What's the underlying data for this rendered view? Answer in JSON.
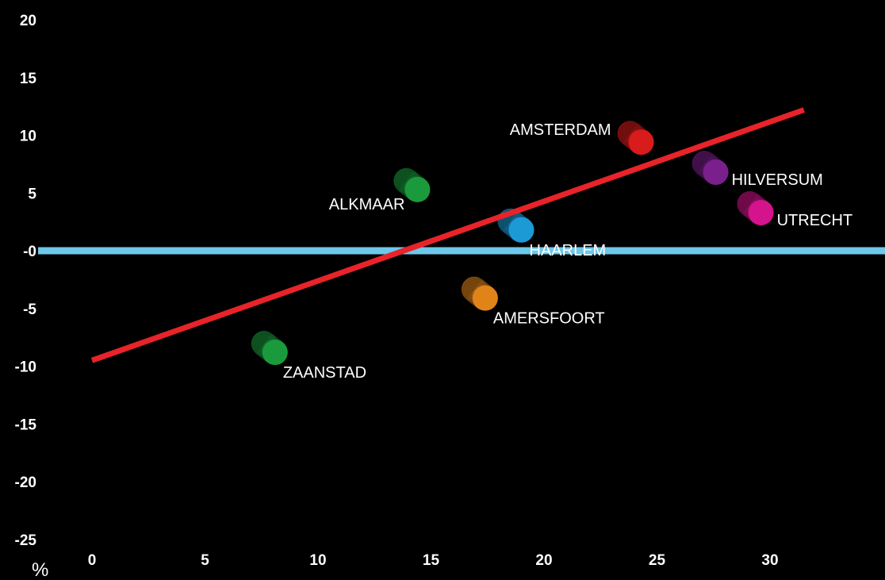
{
  "chart_data": {
    "type": "scatter",
    "title": "",
    "xlabel": "",
    "ylabel": "",
    "unit_label": "%",
    "xlim": [
      0,
      35
    ],
    "ylim": [
      -25,
      20
    ],
    "x_ticks": [
      0,
      5,
      10,
      15,
      20,
      25,
      30
    ],
    "x_tick_labels": [
      "0",
      "5",
      "10",
      "15",
      "20",
      "25",
      "30"
    ],
    "y_ticks": [
      20,
      15,
      10,
      5,
      0,
      -5,
      -10,
      -15,
      -20,
      -25
    ],
    "y_tick_labels": [
      "20",
      "15",
      "10",
      "5",
      "-0",
      "-5",
      "-10",
      "-15",
      "-20",
      "-25"
    ],
    "grid": false,
    "background": "#000000",
    "zero_line_color": "#6dc8ec",
    "trend_line": {
      "color": "#e8232a",
      "x": [
        0,
        31.5
      ],
      "y": [
        -9.5,
        12.2
      ]
    },
    "points": [
      {
        "name": "AMSTERDAM",
        "x": 24.3,
        "y": 9.4,
        "color": "#d81b1b",
        "label_side": "left-above"
      },
      {
        "name": "HILVERSUM",
        "x": 27.6,
        "y": 6.8,
        "color": "#7b1f8c",
        "label_side": "right"
      },
      {
        "name": "UTRECHT",
        "x": 29.6,
        "y": 3.3,
        "color": "#d4138c",
        "label_side": "right"
      },
      {
        "name": "ALKMAAR",
        "x": 14.4,
        "y": 5.3,
        "color": "#1a9a3c",
        "label_side": "left-below"
      },
      {
        "name": "HAARLEM",
        "x": 19.0,
        "y": 1.8,
        "color": "#1c9ad6",
        "label_side": "right-below"
      },
      {
        "name": "AMERSFOORT",
        "x": 17.4,
        "y": -4.1,
        "color": "#e0841a",
        "label_side": "right-below"
      },
      {
        "name": "ZAANSTAD",
        "x": 8.1,
        "y": -8.8,
        "color": "#1a9a3c",
        "label_side": "right-below"
      }
    ]
  }
}
